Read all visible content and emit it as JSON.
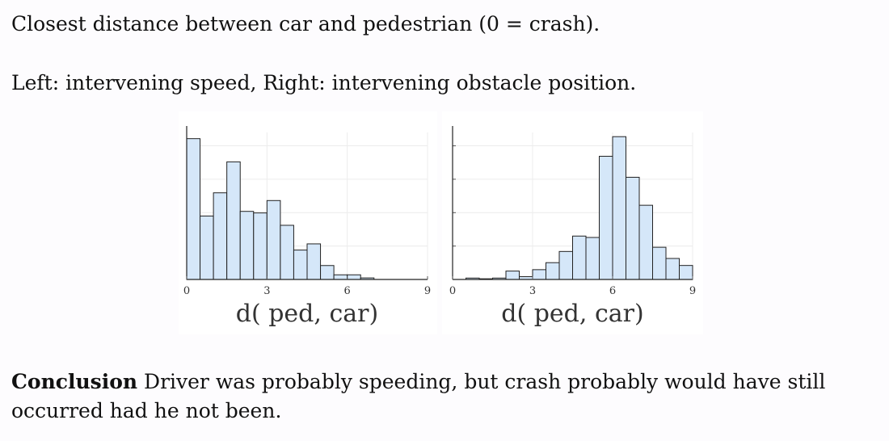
{
  "text": {
    "line1": "Closest distance between car and pedestrian (0 = crash).",
    "line2": "Left: intervening speed, Right: intervening obstacle position.",
    "conclusion_bold": "Conclusion",
    "conclusion_rest": " Driver was probably speeding, but crash probably would have still occurred had he not been."
  },
  "colors": {
    "bar_fill": "#d5e7f9",
    "bar_stroke": "#222222",
    "grid": "#ececec"
  },
  "chart_data": [
    {
      "type": "bar",
      "title": "Left: intervening speed",
      "xlabel": "d( ped, car)",
      "xlim": [
        0,
        9
      ],
      "xticks": [
        0,
        3,
        6,
        9
      ],
      "bin_width": 0.5,
      "bin_starts": [
        0,
        0.5,
        1,
        1.5,
        2,
        2.5,
        3,
        3.5,
        4,
        4.5,
        5,
        5.5,
        6,
        6.5
      ],
      "values": [
        91,
        41,
        56,
        76,
        44,
        43,
        51,
        35,
        19,
        23,
        9,
        3,
        3,
        1
      ],
      "ylim": [
        0,
        95
      ],
      "grid": true
    },
    {
      "type": "bar",
      "title": "Right: intervening obstacle position",
      "xlabel": "d( ped, car)",
      "xlim": [
        0,
        9
      ],
      "xticks": [
        0,
        3,
        6,
        9
      ],
      "bin_width": 0.5,
      "bin_starts": [
        0.5,
        1,
        1.5,
        2,
        2.5,
        3,
        3.5,
        4,
        4.5,
        5,
        5.5,
        6,
        6.5,
        7,
        7.5,
        8,
        8.5
      ],
      "values": [
        1,
        0.5,
        1,
        6,
        2,
        7,
        12,
        20,
        31,
        30,
        88,
        102,
        73,
        53,
        23,
        15,
        10
      ],
      "ylim": [
        0,
        105
      ],
      "grid": true
    }
  ]
}
